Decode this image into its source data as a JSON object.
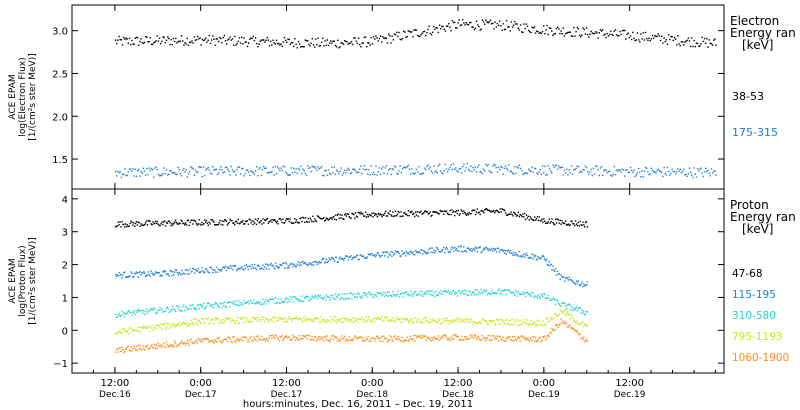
{
  "chart_data": [
    {
      "type": "scatter",
      "ylabel_lines": [
        "ACE EPAM",
        "log(Electron Flux)",
        "[1/(cm²s ster MeV)]"
      ],
      "ylim": [
        1.15,
        3.3
      ],
      "yticks": [
        "1.5",
        "2.0",
        "2.5",
        "3.0"
      ],
      "legend_title": [
        "Electron",
        "Energy ran",
        "[keV]"
      ],
      "series": [
        {
          "name": "38-53",
          "color": "#000000",
          "x": [
            0,
            0.5,
            1,
            1.25,
            1.5,
            1.75,
            2,
            2.25,
            2.5,
            3,
            3.25,
            3.5
          ],
          "y": [
            2.88,
            2.9,
            2.87,
            2.86,
            2.88,
            2.98,
            3.08,
            3.07,
            3.02,
            2.95,
            2.9,
            2.86
          ]
        },
        {
          "name": "175-315",
          "color": "#1e7fd6",
          "x": [
            0,
            0.5,
            1,
            1.5,
            2,
            2.5,
            3,
            3.5
          ],
          "y": [
            1.35,
            1.36,
            1.37,
            1.38,
            1.4,
            1.38,
            1.36,
            1.35
          ]
        }
      ]
    },
    {
      "type": "scatter",
      "ylabel_lines": [
        "ACE EPAM",
        "log(Proton Flux)",
        "[1/(cm²s ster MeV)]"
      ],
      "ylim": [
        -1.3,
        4.3
      ],
      "yticks": [
        "−1",
        "0",
        "1",
        "2",
        "3",
        "4"
      ],
      "legend_title": [
        "Proton",
        "Energy ran",
        "[keV]"
      ],
      "xlabel": "hours:minutes, Dec. 16, 2011 – Dec. 19, 2011",
      "xlim": [
        -0.25,
        3.55
      ],
      "xticks": [
        {
          "x": 0.0,
          "time": "12:00",
          "date": "Dec.16"
        },
        {
          "x": 0.5,
          "time": "0:00",
          "date": "Dec.17"
        },
        {
          "x": 1.0,
          "time": "12:00",
          "date": "Dec.17"
        },
        {
          "x": 1.5,
          "time": "0:00",
          "date": "Dec.18"
        },
        {
          "x": 2.0,
          "time": "12:00",
          "date": "Dec.18"
        },
        {
          "x": 2.5,
          "time": "0:00",
          "date": "Dec.19"
        },
        {
          "x": 3.0,
          "time": "12:00",
          "date": "Dec.19"
        }
      ],
      "series": [
        {
          "name": "47-68",
          "color": "#000000",
          "x": [
            0,
            0.5,
            1,
            1.5,
            2,
            2.25,
            2.5,
            2.75
          ],
          "y": [
            3.25,
            3.3,
            3.35,
            3.55,
            3.6,
            3.65,
            3.35,
            3.25
          ]
        },
        {
          "name": "115-195",
          "color": "#1e7fd6",
          "x": [
            0,
            0.3,
            0.5,
            1,
            1.5,
            2,
            2.25,
            2.5,
            2.6,
            2.75
          ],
          "y": [
            1.7,
            1.75,
            1.85,
            2.0,
            2.3,
            2.5,
            2.45,
            2.2,
            1.6,
            1.4
          ]
        },
        {
          "name": "310-580",
          "color": "#22d3d3",
          "x": [
            0,
            0.5,
            1,
            1.5,
            2,
            2.25,
            2.5,
            2.6,
            2.75
          ],
          "y": [
            0.5,
            0.75,
            0.95,
            1.1,
            1.15,
            1.2,
            1.05,
            0.8,
            0.55
          ]
        },
        {
          "name": "795-1193",
          "color": "#c8e61a",
          "x": [
            0,
            0.5,
            1,
            1.5,
            2,
            2.5,
            2.6,
            2.75
          ],
          "y": [
            -0.05,
            0.3,
            0.35,
            0.35,
            0.3,
            0.25,
            0.6,
            0.1
          ]
        },
        {
          "name": "1060-1900",
          "color": "#ff8c1a",
          "x": [
            0,
            0.5,
            1,
            1.5,
            2,
            2.5,
            2.6,
            2.75
          ],
          "y": [
            -0.6,
            -0.3,
            -0.2,
            -0.25,
            -0.2,
            -0.25,
            0.3,
            -0.3
          ]
        }
      ]
    }
  ]
}
